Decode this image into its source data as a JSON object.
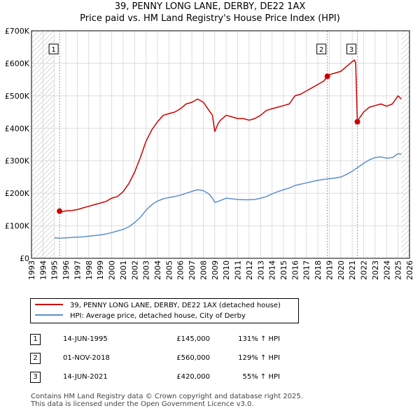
{
  "title": {
    "line1": "39, PENNY LONG LANE, DERBY, DE22 1AX",
    "line2": "Price paid vs. HM Land Registry's House Price Index (HPI)"
  },
  "colors": {
    "property": "#cc0000",
    "hpi": "#5b8fcf",
    "grid": "#dddddd",
    "hatch": "#e8e8e8",
    "vline": "#e08080"
  },
  "chart_data": {
    "type": "line",
    "title": "39, PENNY LONG LANE, DERBY, DE22 1AX",
    "xlabel": "",
    "ylabel": "",
    "xlim": [
      1993,
      2026
    ],
    "ylim": [
      0,
      700000
    ],
    "x_ticks": [
      1993,
      1994,
      1995,
      1996,
      1997,
      1998,
      1999,
      2000,
      2001,
      2002,
      2003,
      2004,
      2005,
      2006,
      2007,
      2008,
      2009,
      2010,
      2011,
      2012,
      2013,
      2014,
      2015,
      2016,
      2017,
      2018,
      2019,
      2020,
      2021,
      2022,
      2023,
      2024,
      2025,
      2026
    ],
    "y_ticks": [
      {
        "value": 0,
        "label": "£0"
      },
      {
        "value": 100000,
        "label": "£100K"
      },
      {
        "value": 200000,
        "label": "£200K"
      },
      {
        "value": 300000,
        "label": "£300K"
      },
      {
        "value": 400000,
        "label": "£400K"
      },
      {
        "value": 500000,
        "label": "£500K"
      },
      {
        "value": 600000,
        "label": "£600K"
      },
      {
        "value": 700000,
        "label": "£700K"
      }
    ],
    "series": [
      {
        "name": "39, PENNY LONG LANE, DERBY, DE22 1AX (detached house)",
        "color": "#cc0000",
        "x": [
          1995.45,
          1995.7,
          1996.0,
          1996.5,
          1997.0,
          1997.5,
          1998.0,
          1998.5,
          1999.0,
          1999.5,
          2000.0,
          2000.5,
          2001.0,
          2001.5,
          2002.0,
          2002.5,
          2003.0,
          2003.5,
          2004.0,
          2004.5,
          2005.0,
          2005.5,
          2006.0,
          2006.5,
          2007.0,
          2007.5,
          2008.0,
          2008.5,
          2008.8,
          2009.0,
          2009.3,
          2009.5,
          2010.0,
          2010.5,
          2011.0,
          2011.5,
          2012.0,
          2012.5,
          2013.0,
          2013.5,
          2014.0,
          2014.5,
          2015.0,
          2015.5,
          2016.0,
          2016.5,
          2017.0,
          2017.5,
          2018.0,
          2018.5,
          2018.83,
          2019.0,
          2019.5,
          2020.0,
          2020.5,
          2021.0,
          2021.2,
          2021.3,
          2021.45,
          2021.6,
          2022.0,
          2022.5,
          2023.0,
          2023.5,
          2024.0,
          2024.5,
          2025.0,
          2025.3
        ],
        "values": [
          145000,
          143000,
          146000,
          147000,
          150000,
          155000,
          160000,
          165000,
          170000,
          175000,
          185000,
          190000,
          205000,
          230000,
          265000,
          310000,
          360000,
          395000,
          420000,
          440000,
          445000,
          450000,
          460000,
          475000,
          480000,
          490000,
          480000,
          455000,
          440000,
          390000,
          415000,
          425000,
          440000,
          435000,
          430000,
          430000,
          425000,
          430000,
          440000,
          455000,
          460000,
          465000,
          470000,
          475000,
          500000,
          505000,
          515000,
          525000,
          535000,
          545000,
          560000,
          565000,
          570000,
          575000,
          590000,
          605000,
          610000,
          600000,
          420000,
          430000,
          450000,
          465000,
          470000,
          475000,
          468000,
          475000,
          500000,
          490000
        ]
      },
      {
        "name": "HPI: Average price, detached house, City of Derby",
        "color": "#5b8fcf",
        "x": [
          1995.0,
          1995.5,
          1996.0,
          1996.5,
          1997.0,
          1997.5,
          1998.0,
          1998.5,
          1999.0,
          1999.5,
          2000.0,
          2000.5,
          2001.0,
          2001.5,
          2002.0,
          2002.5,
          2003.0,
          2003.5,
          2004.0,
          2004.5,
          2005.0,
          2005.5,
          2006.0,
          2006.5,
          2007.0,
          2007.5,
          2008.0,
          2008.5,
          2008.8,
          2009.0,
          2009.3,
          2009.5,
          2010.0,
          2010.5,
          2011.0,
          2011.5,
          2012.0,
          2012.5,
          2013.0,
          2013.5,
          2014.0,
          2014.5,
          2015.0,
          2015.5,
          2016.0,
          2016.5,
          2017.0,
          2017.5,
          2018.0,
          2018.5,
          2019.0,
          2019.5,
          2020.0,
          2020.5,
          2021.0,
          2021.5,
          2022.0,
          2022.5,
          2023.0,
          2023.5,
          2024.0,
          2024.5,
          2025.0,
          2025.3
        ],
        "values": [
          63000,
          62000,
          63000,
          64000,
          65000,
          66000,
          68000,
          70000,
          72000,
          75000,
          79000,
          84000,
          89000,
          97000,
          110000,
          126000,
          148000,
          165000,
          176000,
          183000,
          187000,
          190000,
          194000,
          200000,
          206000,
          211000,
          208000,
          198000,
          185000,
          172000,
          175000,
          178000,
          185000,
          183000,
          181000,
          180000,
          180000,
          181000,
          185000,
          190000,
          198000,
          205000,
          211000,
          216000,
          224000,
          228000,
          232000,
          236000,
          240000,
          243000,
          245000,
          247000,
          250000,
          258000,
          268000,
          280000,
          292000,
          303000,
          310000,
          312000,
          308000,
          310000,
          322000,
          320000
        ]
      }
    ],
    "markers": [
      {
        "label": "1",
        "x": 1995.45,
        "value": 145000
      },
      {
        "label": "2",
        "x": 2018.83,
        "value": 560000
      },
      {
        "label": "3",
        "x": 2021.45,
        "value": 420000
      }
    ],
    "hatched_ranges": [
      [
        1993,
        1995
      ],
      [
        2025.3,
        2026
      ]
    ]
  },
  "legend": {
    "items": [
      {
        "label": "39, PENNY LONG LANE, DERBY, DE22 1AX (detached house)"
      },
      {
        "label": "HPI: Average price, detached house, City of Derby"
      }
    ]
  },
  "sales": [
    {
      "num": "1",
      "date": "14-JUN-1995",
      "price": "£145,000",
      "hpi": "131% ↑ HPI"
    },
    {
      "num": "2",
      "date": "01-NOV-2018",
      "price": "£560,000",
      "hpi": "129% ↑ HPI"
    },
    {
      "num": "3",
      "date": "14-JUN-2021",
      "price": "£420,000",
      "hpi": "55% ↑ HPI"
    }
  ],
  "footer": {
    "line1": "Contains HM Land Registry data © Crown copyright and database right 2025.",
    "line2": "This data is licensed under the Open Government Licence v3.0."
  }
}
